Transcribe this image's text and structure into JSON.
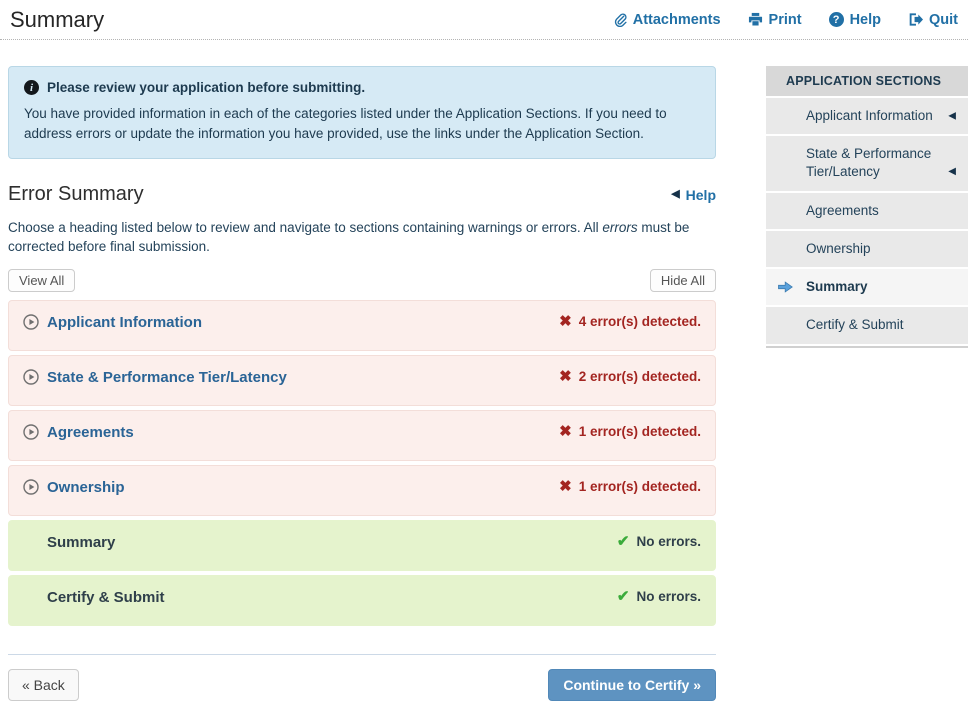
{
  "page": {
    "title": "Summary"
  },
  "header": {
    "links": [
      {
        "label": "Attachments",
        "icon": "paperclip-icon"
      },
      {
        "label": "Print",
        "icon": "print-icon"
      },
      {
        "label": "Help",
        "icon": "help-circle-icon"
      },
      {
        "label": "Quit",
        "icon": "quit-icon"
      }
    ]
  },
  "notice": {
    "title": "Please review your application before submitting.",
    "body": "You have provided information in each of the categories listed under the Application Sections. If you need to address errors or update the information you have provided, use the links under the Application Section."
  },
  "error_summary": {
    "heading": "Error Summary",
    "help_label": "Help",
    "desc_before": "Choose a heading listed below to review and navigate to sections containing warnings or errors. All ",
    "desc_italic": "errors",
    "desc_after": " must be corrected before final submission.",
    "view_all_label": "View All",
    "hide_all_label": "Hide All",
    "sections": [
      {
        "label": "Applicant Information",
        "status": "error",
        "status_text": "4 error(s) detected."
      },
      {
        "label": "State & Performance Tier/Latency",
        "status": "error",
        "status_text": "2 error(s) detected."
      },
      {
        "label": "Agreements",
        "status": "error",
        "status_text": "1 error(s) detected."
      },
      {
        "label": "Ownership",
        "status": "error",
        "status_text": "1 error(s) detected."
      },
      {
        "label": "Summary",
        "status": "ok",
        "status_text": "No errors."
      },
      {
        "label": "Certify & Submit",
        "status": "ok",
        "status_text": "No errors."
      }
    ]
  },
  "sidebar": {
    "heading": "APPLICATION SECTIONS",
    "items": [
      {
        "label": "Applicant Information",
        "collapsible": true,
        "active": false,
        "twoline": false
      },
      {
        "label": "State & Performance Tier/Latency",
        "collapsible": true,
        "active": false,
        "twoline": true
      },
      {
        "label": "Agreements",
        "collapsible": false,
        "active": false,
        "twoline": false
      },
      {
        "label": "Ownership",
        "collapsible": false,
        "active": false,
        "twoline": false
      },
      {
        "label": "Summary",
        "collapsible": false,
        "active": true,
        "twoline": false
      },
      {
        "label": "Certify & Submit",
        "collapsible": false,
        "active": false,
        "twoline": false
      }
    ]
  },
  "footer": {
    "back_label": "« Back",
    "continue_label": "Continue to Certify »"
  },
  "colors": {
    "link_blue": "#2170a6",
    "section_link_blue": "#2a6496",
    "error_red": "#a32521",
    "success_green": "#3bab3b",
    "notice_bg": "#d6eaf5",
    "error_bg": "#fcefec",
    "success_bg": "#e5f3cd",
    "continue_button_bg": "#5e93c1"
  }
}
